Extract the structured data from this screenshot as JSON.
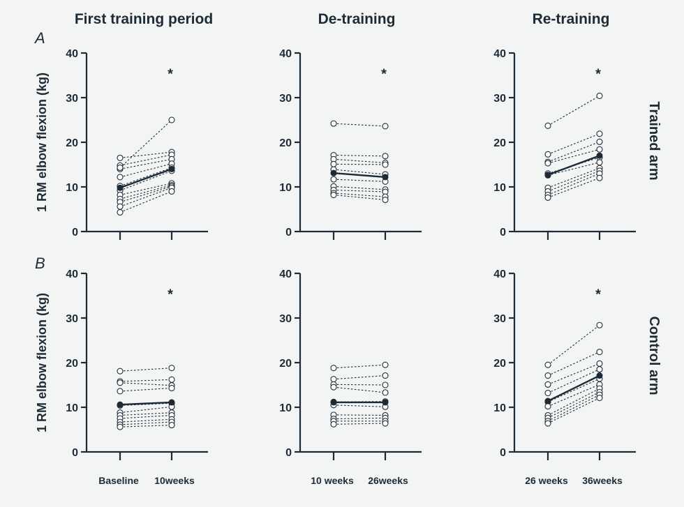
{
  "column_titles": [
    "First training period",
    "De-training",
    "Re-training"
  ],
  "row_letters": [
    "A",
    "B"
  ],
  "row_labels": [
    "Trained arm",
    "Control arm"
  ],
  "ylabel": "1 RM elbow flexion (kg)",
  "significance_marker": "*",
  "chart_data": [
    {
      "type": "line",
      "panel": "A-first-training",
      "row": 0,
      "col": 0,
      "categories": [
        "Baseline",
        "10weeks"
      ],
      "ylim": [
        0,
        40
      ],
      "yticks": [
        "0",
        "10",
        "20",
        "30",
        "40"
      ],
      "significant": true,
      "mean": [
        9.8,
        14.0
      ],
      "subjects": [
        [
          16.5,
          17.8
        ],
        [
          14.8,
          17.2
        ],
        [
          14.0,
          16.2
        ],
        [
          12.2,
          15.2
        ],
        [
          10.2,
          14.3
        ],
        [
          9.2,
          13.6
        ],
        [
          8.2,
          10.8
        ],
        [
          7.3,
          10.4
        ],
        [
          6.6,
          10.1
        ],
        [
          5.6,
          9.8
        ],
        [
          4.3,
          9.0
        ],
        [
          14.3,
          25.0
        ]
      ]
    },
    {
      "type": "line",
      "panel": "A-de-training",
      "row": 0,
      "col": 1,
      "categories": [
        "10 weeks",
        "26weeks"
      ],
      "ylim": [
        0,
        40
      ],
      "yticks": [
        "0",
        "10",
        "20",
        "30",
        "40"
      ],
      "significant": true,
      "mean": [
        13.1,
        12.2
      ],
      "subjects": [
        [
          24.2,
          23.6
        ],
        [
          17.1,
          16.9
        ],
        [
          16.2,
          15.4
        ],
        [
          15.1,
          15.0
        ],
        [
          13.9,
          12.8
        ],
        [
          11.7,
          11.2
        ],
        [
          10.1,
          9.4
        ],
        [
          9.3,
          8.9
        ],
        [
          8.6,
          7.8
        ],
        [
          8.2,
          7.1
        ]
      ]
    },
    {
      "type": "line",
      "panel": "A-re-training",
      "row": 0,
      "col": 2,
      "categories": [
        "26 weeks",
        "36weeks"
      ],
      "ylim": [
        0,
        40
      ],
      "yticks": [
        "0",
        "10",
        "20",
        "30",
        "40"
      ],
      "significant": true,
      "mean": [
        12.7,
        17.0
      ],
      "subjects": [
        [
          23.7,
          30.4
        ],
        [
          17.3,
          21.9
        ],
        [
          15.6,
          20.1
        ],
        [
          15.3,
          18.4
        ],
        [
          13.0,
          16.6
        ],
        [
          12.6,
          15.5
        ],
        [
          9.8,
          14.2
        ],
        [
          9.0,
          13.6
        ],
        [
          8.2,
          13.0
        ],
        [
          7.6,
          12.0
        ]
      ]
    },
    {
      "type": "line",
      "panel": "B-first-training",
      "row": 1,
      "col": 0,
      "categories": [
        "Baseline",
        "10weeks"
      ],
      "ylim": [
        0,
        40
      ],
      "yticks": [
        "0",
        "10",
        "20",
        "30",
        "40"
      ],
      "significant": true,
      "mean": [
        10.6,
        11.1
      ],
      "subjects": [
        [
          18.1,
          18.8
        ],
        [
          15.8,
          16.2
        ],
        [
          15.5,
          14.9
        ],
        [
          13.6,
          14.3
        ],
        [
          10.4,
          10.9
        ],
        [
          8.8,
          10.1
        ],
        [
          8.2,
          8.8
        ],
        [
          7.5,
          8.2
        ],
        [
          6.7,
          7.3
        ],
        [
          6.1,
          6.7
        ],
        [
          5.6,
          6.0
        ]
      ]
    },
    {
      "type": "line",
      "panel": "B-de-training",
      "row": 1,
      "col": 1,
      "categories": [
        "10 weeks",
        "26weeks"
      ],
      "ylim": [
        0,
        40
      ],
      "yticks": [
        "0",
        "10",
        "20",
        "30",
        "40"
      ],
      "significant": false,
      "mean": [
        11.1,
        11.1
      ],
      "subjects": [
        [
          18.8,
          19.5
        ],
        [
          16.3,
          17.1
        ],
        [
          15.1,
          15.0
        ],
        [
          14.5,
          13.3
        ],
        [
          11.2,
          11.3
        ],
        [
          10.5,
          10.1
        ],
        [
          8.3,
          8.2
        ],
        [
          7.4,
          7.6
        ],
        [
          6.9,
          6.9
        ],
        [
          6.2,
          6.4
        ]
      ]
    },
    {
      "type": "line",
      "panel": "B-re-training",
      "row": 1,
      "col": 2,
      "categories": [
        "26 weeks",
        "36weeks"
      ],
      "ylim": [
        0,
        40
      ],
      "yticks": [
        "0",
        "10",
        "20",
        "30",
        "40"
      ],
      "significant": true,
      "mean": [
        11.4,
        17.1
      ],
      "subjects": [
        [
          19.5,
          28.4
        ],
        [
          17.1,
          22.4
        ],
        [
          15.1,
          19.8
        ],
        [
          13.2,
          18.5
        ],
        [
          11.2,
          16.4
        ],
        [
          10.2,
          15.1
        ],
        [
          8.2,
          14.2
        ],
        [
          7.6,
          13.4
        ],
        [
          6.9,
          12.8
        ],
        [
          6.4,
          12.1
        ]
      ]
    }
  ]
}
